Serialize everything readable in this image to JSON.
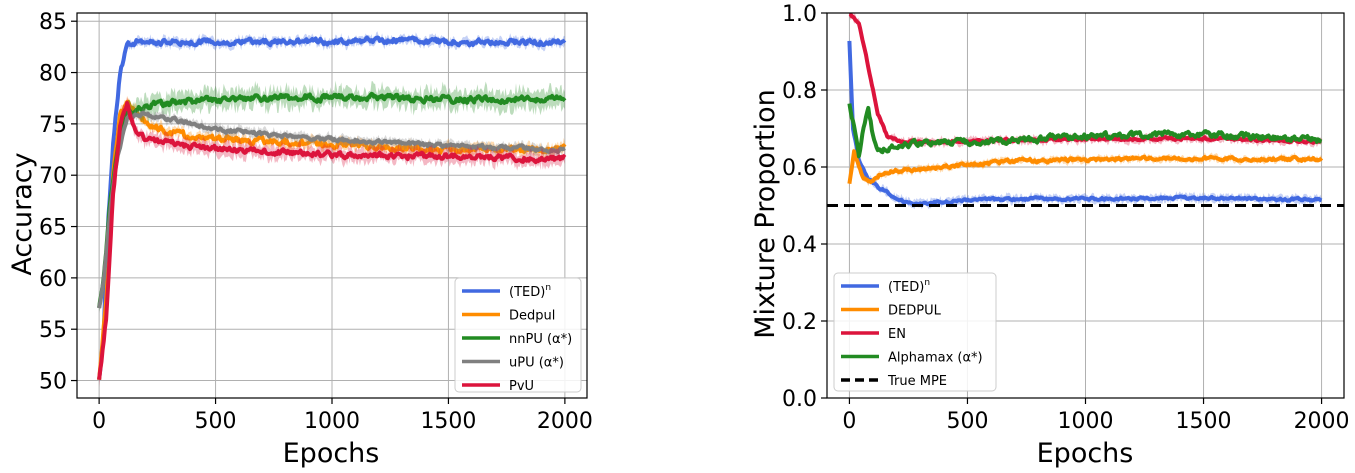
{
  "chart_data": [
    {
      "type": "line",
      "title": "",
      "xlabel": "Epochs",
      "ylabel": "Accuracy",
      "xlim": [
        -95,
        2095
      ],
      "ylim": [
        48.3,
        85.8
      ],
      "xticks": [
        0,
        500,
        1000,
        1500,
        2000
      ],
      "xtick_labels": [
        "0",
        "500",
        "1000",
        "1500",
        "2000"
      ],
      "yticks": [
        50,
        55,
        60,
        65,
        70,
        75,
        80,
        85
      ],
      "ytick_labels": [
        "50",
        "55",
        "60",
        "65",
        "70",
        "75",
        "80",
        "85"
      ],
      "grid": true,
      "legend_position": "lower-right",
      "series": [
        {
          "name": "(TED)",
          "sup": "n",
          "color": "#4169e1",
          "noise": 0.5,
          "band": 0.5,
          "points": [
            [
              0,
              50
            ],
            [
              20,
              55
            ],
            [
              40,
              66
            ],
            [
              60,
              73
            ],
            [
              90,
              80
            ],
            [
              120,
              82.6
            ],
            [
              160,
              83
            ],
            [
              300,
              83
            ],
            [
              600,
              83
            ],
            [
              1000,
              83
            ],
            [
              1300,
              83.2
            ],
            [
              1600,
              82.9
            ],
            [
              2000,
              83
            ]
          ]
        },
        {
          "name": "Dedpul",
          "color": "#ff8c00",
          "noise": 0.55,
          "band": 0.6,
          "points": [
            [
              0,
              50
            ],
            [
              30,
              58
            ],
            [
              60,
              70
            ],
            [
              90,
              76
            ],
            [
              120,
              77
            ],
            [
              180,
              75.5
            ],
            [
              300,
              74
            ],
            [
              500,
              73.6
            ],
            [
              800,
              73.2
            ],
            [
              1100,
              72.9
            ],
            [
              1400,
              72.5
            ],
            [
              1700,
              72.4
            ],
            [
              2000,
              72.6
            ]
          ]
        },
        {
          "name": "nnPU (α*)",
          "color": "#228b22",
          "noise": 0.55,
          "band": 1.1,
          "points": [
            [
              0,
              57
            ],
            [
              20,
              60
            ],
            [
              50,
              68
            ],
            [
              80,
              73
            ],
            [
              120,
              76
            ],
            [
              200,
              76.8
            ],
            [
              400,
              77.2
            ],
            [
              700,
              77.5
            ],
            [
              1000,
              77.6
            ],
            [
              1300,
              77.5
            ],
            [
              1600,
              77.4
            ],
            [
              2000,
              77.5
            ]
          ]
        },
        {
          "name": "uPU (α*)",
          "color": "#808080",
          "noise": 0.35,
          "band": 0.5,
          "points": [
            [
              0,
              57
            ],
            [
              20,
              60
            ],
            [
              50,
              67
            ],
            [
              80,
              72
            ],
            [
              120,
              75.5
            ],
            [
              180,
              76
            ],
            [
              300,
              75.5
            ],
            [
              500,
              74.5
            ],
            [
              700,
              74
            ],
            [
              900,
              73.6
            ],
            [
              1100,
              73.4
            ],
            [
              1300,
              73.1
            ],
            [
              1600,
              72.8
            ],
            [
              2000,
              72.5
            ]
          ]
        },
        {
          "name": "PvU",
          "color": "#dc143c",
          "noise": 0.5,
          "band": 0.8,
          "points": [
            [
              0,
              50
            ],
            [
              30,
              56
            ],
            [
              60,
              68
            ],
            [
              90,
              75
            ],
            [
              120,
              77
            ],
            [
              150,
              74.5
            ],
            [
              200,
              73.5
            ],
            [
              400,
              72.8
            ],
            [
              700,
              72.3
            ],
            [
              1000,
              72
            ],
            [
              1300,
              71.9
            ],
            [
              1600,
              71.8
            ],
            [
              2000,
              71.6
            ]
          ]
        }
      ]
    },
    {
      "type": "line",
      "title": "",
      "xlabel": "Epochs",
      "ylabel": "Mixture Proportion",
      "xlim": [
        -95,
        2095
      ],
      "ylim": [
        0.0,
        1.0
      ],
      "xticks": [
        0,
        500,
        1000,
        1500,
        2000
      ],
      "xtick_labels": [
        "0",
        "500",
        "1000",
        "1500",
        "2000"
      ],
      "yticks": [
        0.0,
        0.2,
        0.4,
        0.6,
        0.8,
        1.0
      ],
      "ytick_labels": [
        "0.0",
        "0.2",
        "0.4",
        "0.6",
        "0.8",
        "1.0"
      ],
      "grid": true,
      "legend_position": "lower-left",
      "series": [
        {
          "name": "(TED)",
          "sup": "n",
          "color": "#4169e1",
          "noise": 0.006,
          "band": 0.012,
          "points": [
            [
              0,
              0.93
            ],
            [
              15,
              0.7
            ],
            [
              40,
              0.62
            ],
            [
              80,
              0.57
            ],
            [
              120,
              0.55
            ],
            [
              170,
              0.53
            ],
            [
              230,
              0.51
            ],
            [
              300,
              0.505
            ],
            [
              500,
              0.515
            ],
            [
              1000,
              0.518
            ],
            [
              1500,
              0.52
            ],
            [
              2000,
              0.515
            ]
          ]
        },
        {
          "name": "DEDPUL",
          "color": "#ff8c00",
          "noise": 0.008,
          "band": 0.01,
          "points": [
            [
              0,
              0.56
            ],
            [
              20,
              0.64
            ],
            [
              40,
              0.6
            ],
            [
              60,
              0.575
            ],
            [
              90,
              0.565
            ],
            [
              130,
              0.58
            ],
            [
              200,
              0.59
            ],
            [
              400,
              0.6
            ],
            [
              700,
              0.615
            ],
            [
              1000,
              0.62
            ],
            [
              1400,
              0.622
            ],
            [
              2000,
              0.62
            ]
          ]
        },
        {
          "name": "EN",
          "color": "#dc143c",
          "noise": 0.006,
          "band": 0.012,
          "points": [
            [
              0,
              1.0
            ],
            [
              40,
              0.97
            ],
            [
              80,
              0.86
            ],
            [
              120,
              0.74
            ],
            [
              160,
              0.68
            ],
            [
              220,
              0.665
            ],
            [
              400,
              0.665
            ],
            [
              700,
              0.67
            ],
            [
              1000,
              0.672
            ],
            [
              1500,
              0.675
            ],
            [
              2000,
              0.665
            ]
          ]
        },
        {
          "name": "Alphamax (α*)",
          "color": "#228b22",
          "noise": 0.014,
          "band": 0.0,
          "points": [
            [
              0,
              0.77
            ],
            [
              20,
              0.7
            ],
            [
              40,
              0.63
            ],
            [
              60,
              0.7
            ],
            [
              80,
              0.76
            ],
            [
              100,
              0.68
            ],
            [
              130,
              0.64
            ],
            [
              170,
              0.65
            ],
            [
              250,
              0.66
            ],
            [
              500,
              0.665
            ],
            [
              1000,
              0.68
            ],
            [
              1500,
              0.685
            ],
            [
              2000,
              0.67
            ]
          ]
        },
        {
          "name": "True MPE",
          "color": "#000000",
          "dashed": true,
          "noise": 0.0,
          "band": 0.0,
          "points": [
            [
              -95,
              0.5
            ],
            [
              2095,
              0.5
            ]
          ]
        }
      ]
    }
  ]
}
